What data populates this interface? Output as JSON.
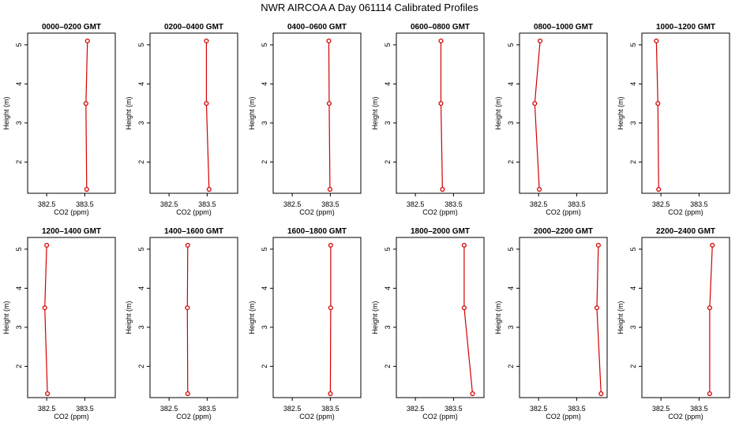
{
  "title": "NWR AIRCOA A  Day 061114  Calibrated Profiles",
  "colors": {
    "series": "#d40000",
    "axes": "#000000",
    "background": "#ffffff"
  },
  "chart_data": [
    {
      "type": "line",
      "title": "0000–0200 GMT",
      "xlabel": "CO2 (ppm)",
      "ylabel": "Height (m)",
      "xlim": [
        382.0,
        384.3
      ],
      "ylim": [
        1.2,
        5.3
      ],
      "x_ticks": [
        382.5,
        383.5
      ],
      "x_tick_labels": [
        "382.5",
        "383.5"
      ],
      "y_ticks": [
        2,
        3,
        4,
        5
      ],
      "y_tick_labels": [
        "2",
        "3",
        "4",
        "5"
      ],
      "grid": false,
      "x": [
        383.55,
        383.53,
        383.57
      ],
      "y": [
        1.3,
        3.5,
        5.1
      ]
    },
    {
      "type": "line",
      "title": "0200–0400 GMT",
      "xlabel": "CO2 (ppm)",
      "ylabel": "Height (m)",
      "xlim": [
        382.0,
        384.3
      ],
      "ylim": [
        1.2,
        5.3
      ],
      "x_ticks": [
        382.5,
        383.5
      ],
      "x_tick_labels": [
        "382.5",
        "383.5"
      ],
      "y_ticks": [
        2,
        3,
        4,
        5
      ],
      "y_tick_labels": [
        "2",
        "3",
        "4",
        "5"
      ],
      "grid": false,
      "x": [
        383.55,
        383.48,
        383.48
      ],
      "y": [
        1.3,
        3.5,
        5.1
      ]
    },
    {
      "type": "line",
      "title": "0400–0600 GMT",
      "xlabel": "CO2 (ppm)",
      "ylabel": "Height (m)",
      "xlim": [
        382.0,
        384.3
      ],
      "ylim": [
        1.2,
        5.3
      ],
      "x_ticks": [
        382.5,
        383.5
      ],
      "x_tick_labels": [
        "382.5",
        "383.5"
      ],
      "y_ticks": [
        2,
        3,
        4,
        5
      ],
      "y_tick_labels": [
        "2",
        "3",
        "4",
        "5"
      ],
      "grid": false,
      "x": [
        383.49,
        383.47,
        383.46
      ],
      "y": [
        1.3,
        3.5,
        5.1
      ]
    },
    {
      "type": "line",
      "title": "0600–0800 GMT",
      "xlabel": "CO2 (ppm)",
      "ylabel": "Height (m)",
      "xlim": [
        382.0,
        384.3
      ],
      "ylim": [
        1.2,
        5.3
      ],
      "x_ticks": [
        382.5,
        383.5
      ],
      "x_tick_labels": [
        "382.5",
        "383.5"
      ],
      "y_ticks": [
        2,
        3,
        4,
        5
      ],
      "y_tick_labels": [
        "2",
        "3",
        "4",
        "5"
      ],
      "grid": false,
      "x": [
        383.21,
        383.17,
        383.17
      ],
      "y": [
        1.3,
        3.5,
        5.1
      ]
    },
    {
      "type": "line",
      "title": "0800–1000 GMT",
      "xlabel": "CO2 (ppm)",
      "ylabel": "Height (m)",
      "xlim": [
        382.0,
        384.3
      ],
      "ylim": [
        1.2,
        5.3
      ],
      "x_ticks": [
        382.5,
        383.5
      ],
      "x_tick_labels": [
        "382.5",
        "383.5"
      ],
      "y_ticks": [
        2,
        3,
        4,
        5
      ],
      "y_tick_labels": [
        "2",
        "3",
        "4",
        "5"
      ],
      "grid": false,
      "x": [
        382.52,
        382.4,
        382.54
      ],
      "y": [
        1.3,
        3.5,
        5.1
      ]
    },
    {
      "type": "line",
      "title": "1000–1200 GMT",
      "xlabel": "CO2 (ppm)",
      "ylabel": "Height (m)",
      "xlim": [
        382.0,
        384.3
      ],
      "ylim": [
        1.2,
        5.3
      ],
      "x_ticks": [
        382.5,
        383.5
      ],
      "x_tick_labels": [
        "382.5",
        "383.5"
      ],
      "y_ticks": [
        2,
        3,
        4,
        5
      ],
      "y_tick_labels": [
        "2",
        "3",
        "4",
        "5"
      ],
      "grid": false,
      "x": [
        382.44,
        382.42,
        382.38
      ],
      "y": [
        1.3,
        3.5,
        5.1
      ]
    },
    {
      "type": "line",
      "title": "1200–1400 GMT",
      "xlabel": "CO2 (ppm)",
      "ylabel": "Height (m)",
      "xlim": [
        382.0,
        384.3
      ],
      "ylim": [
        1.2,
        5.3
      ],
      "x_ticks": [
        382.5,
        383.5
      ],
      "x_tick_labels": [
        "382.5",
        "383.5"
      ],
      "y_ticks": [
        2,
        3,
        4,
        5
      ],
      "y_tick_labels": [
        "2",
        "3",
        "4",
        "5"
      ],
      "grid": false,
      "x": [
        382.52,
        382.45,
        382.5
      ],
      "y": [
        1.3,
        3.5,
        5.1
      ]
    },
    {
      "type": "line",
      "title": "1400–1600 GMT",
      "xlabel": "CO2 (ppm)",
      "ylabel": "Height (m)",
      "xlim": [
        382.0,
        384.3
      ],
      "ylim": [
        1.2,
        5.3
      ],
      "x_ticks": [
        382.5,
        383.5
      ],
      "x_tick_labels": [
        "382.5",
        "383.5"
      ],
      "y_ticks": [
        2,
        3,
        4,
        5
      ],
      "y_tick_labels": [
        "2",
        "3",
        "4",
        "5"
      ],
      "grid": false,
      "x": [
        382.99,
        382.98,
        382.99
      ],
      "y": [
        1.3,
        3.5,
        5.1
      ]
    },
    {
      "type": "line",
      "title": "1600–1800 GMT",
      "xlabel": "CO2 (ppm)",
      "ylabel": "Height (m)",
      "xlim": [
        382.0,
        384.3
      ],
      "ylim": [
        1.2,
        5.3
      ],
      "x_ticks": [
        382.5,
        383.5
      ],
      "x_tick_labels": [
        "382.5",
        "383.5"
      ],
      "y_ticks": [
        2,
        3,
        4,
        5
      ],
      "y_tick_labels": [
        "2",
        "3",
        "4",
        "5"
      ],
      "grid": false,
      "x": [
        383.5,
        383.51,
        383.51
      ],
      "y": [
        1.3,
        3.5,
        5.1
      ]
    },
    {
      "type": "line",
      "title": "1800–2000 GMT",
      "xlabel": "CO2 (ppm)",
      "ylabel": "Height (m)",
      "xlim": [
        382.0,
        384.3
      ],
      "ylim": [
        1.2,
        5.3
      ],
      "x_ticks": [
        382.5,
        383.5
      ],
      "x_tick_labels": [
        "382.5",
        "383.5"
      ],
      "y_ticks": [
        2,
        3,
        4,
        5
      ],
      "y_tick_labels": [
        "2",
        "3",
        "4",
        "5"
      ],
      "grid": false,
      "x": [
        384.0,
        383.78,
        383.78
      ],
      "y": [
        1.3,
        3.5,
        5.1
      ]
    },
    {
      "type": "line",
      "title": "2000–2200 GMT",
      "xlabel": "CO2 (ppm)",
      "ylabel": "Height (m)",
      "xlim": [
        382.0,
        384.3
      ],
      "ylim": [
        1.2,
        5.3
      ],
      "x_ticks": [
        382.5,
        383.5
      ],
      "x_tick_labels": [
        "382.5",
        "383.5"
      ],
      "y_ticks": [
        2,
        3,
        4,
        5
      ],
      "y_tick_labels": [
        "2",
        "3",
        "4",
        "5"
      ],
      "grid": false,
      "x": [
        384.14,
        384.03,
        384.07
      ],
      "y": [
        1.3,
        3.5,
        5.1
      ]
    },
    {
      "type": "line",
      "title": "2200–2400 GMT",
      "xlabel": "CO2 (ppm)",
      "ylabel": "Height (m)",
      "xlim": [
        382.0,
        384.3
      ],
      "ylim": [
        1.2,
        5.3
      ],
      "x_ticks": [
        382.5,
        383.5
      ],
      "x_tick_labels": [
        "382.5",
        "383.5"
      ],
      "y_ticks": [
        2,
        3,
        4,
        5
      ],
      "y_tick_labels": [
        "2",
        "3",
        "4",
        "5"
      ],
      "grid": false,
      "x": [
        383.78,
        383.78,
        383.85
      ],
      "y": [
        1.3,
        3.5,
        5.1
      ]
    }
  ]
}
